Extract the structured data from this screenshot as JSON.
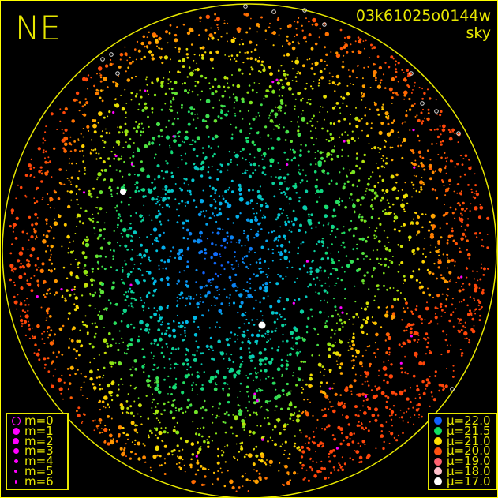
{
  "direction_label": "NE",
  "frame_id": "03k61025o0144w",
  "frame_type": "sky",
  "colors": {
    "frame": "#e8e800",
    "background": "#000000",
    "catalog_star": "#ff00ff"
  },
  "magnitude_legend": [
    {
      "label": "m=0",
      "size": 0
    },
    {
      "label": "m=1",
      "size": 1
    },
    {
      "label": "m=2",
      "size": 2
    },
    {
      "label": "m=3",
      "size": 3
    },
    {
      "label": "m=4",
      "size": 4
    },
    {
      "label": "m=5",
      "size": 5
    },
    {
      "label": "m=6",
      "size": 6
    }
  ],
  "sky_brightness_legend": [
    {
      "label": "μ=22.0",
      "color": "#1060ff"
    },
    {
      "label": "μ=21.5",
      "color": "#10e060"
    },
    {
      "label": "μ=21.0",
      "color": "#ffe000"
    },
    {
      "label": "μ=20.0",
      "color": "#ff5010"
    },
    {
      "label": "μ=19.0",
      "color": "#ff6070"
    },
    {
      "label": "μ=18.0",
      "color": "#ffc0cc"
    },
    {
      "label": "μ=17.0",
      "color": "#ffffff"
    }
  ]
}
